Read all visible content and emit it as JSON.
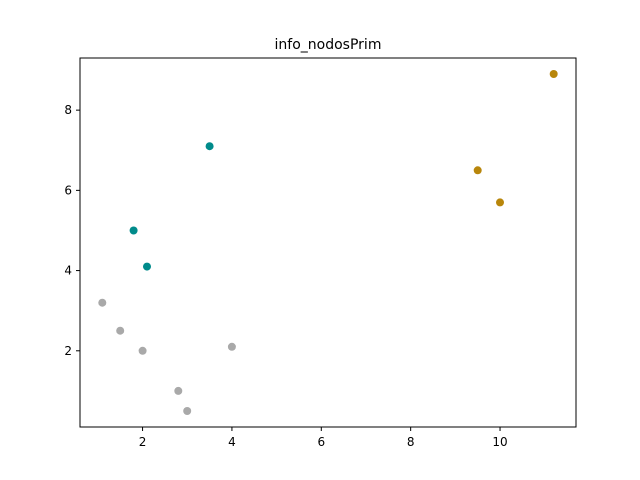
{
  "chart_data": {
    "type": "scatter",
    "title": "info_nodosPrim",
    "xlabel": "",
    "ylabel": "",
    "xlim": [
      0.6,
      11.7
    ],
    "ylim": [
      0.1,
      9.3
    ],
    "xticks": [
      2,
      4,
      6,
      8,
      10
    ],
    "yticks": [
      2,
      4,
      6,
      8
    ],
    "xtick_labels": [
      "2",
      "4",
      "6",
      "8",
      "10"
    ],
    "ytick_labels": [
      "2",
      "4",
      "6",
      "8"
    ],
    "grid": false,
    "series": [
      {
        "color": "#a9a9a9",
        "points": [
          {
            "x": 1.1,
            "y": 3.2
          },
          {
            "x": 1.5,
            "y": 2.5
          },
          {
            "x": 2.0,
            "y": 2.0
          },
          {
            "x": 2.8,
            "y": 1.0
          },
          {
            "x": 3.0,
            "y": 0.5
          },
          {
            "x": 4.0,
            "y": 2.1
          }
        ]
      },
      {
        "color": "#008b8b",
        "points": [
          {
            "x": 1.8,
            "y": 5.0
          },
          {
            "x": 2.1,
            "y": 4.1
          },
          {
            "x": 3.5,
            "y": 7.1
          }
        ]
      },
      {
        "color": "#b8860b",
        "points": [
          {
            "x": 9.5,
            "y": 6.5
          },
          {
            "x": 10.0,
            "y": 5.7
          },
          {
            "x": 11.2,
            "y": 8.9
          }
        ]
      }
    ]
  }
}
